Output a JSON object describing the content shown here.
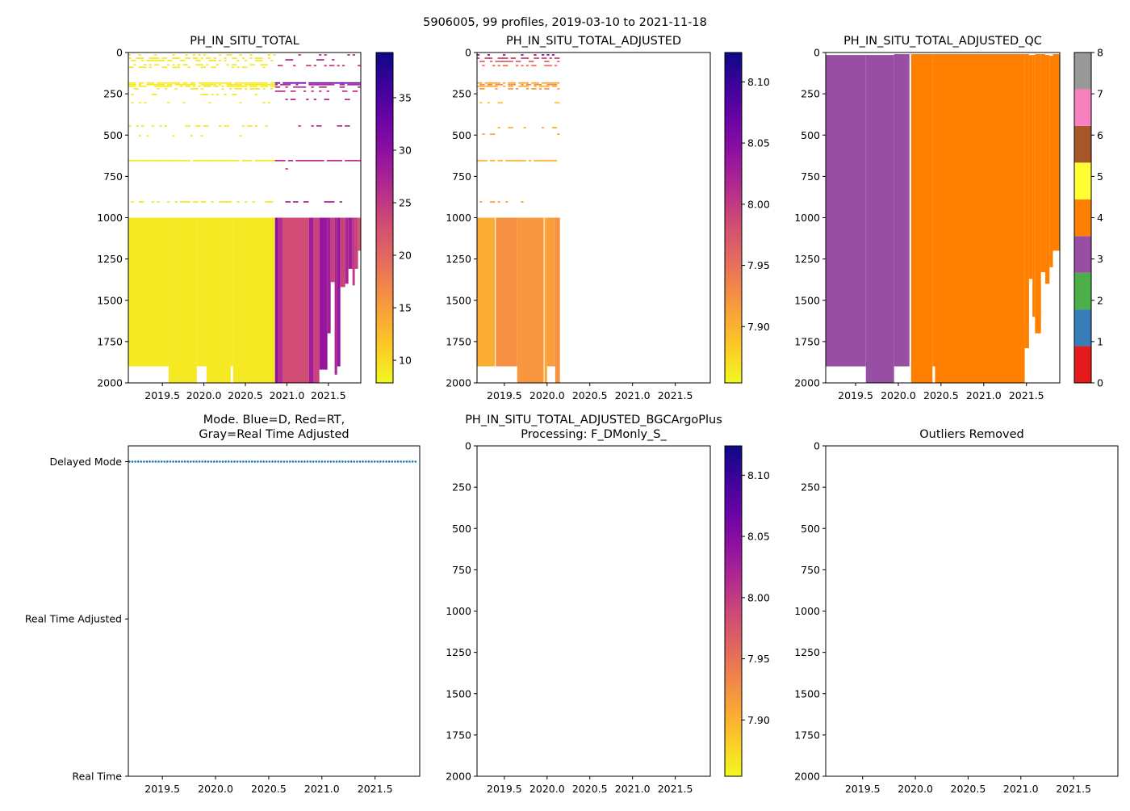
{
  "figure_title": "5906005, 99 profiles, 2019-03-10 to 2021-11-18",
  "chart_data": [
    {
      "type": "heatmap",
      "title": [
        "PH_IN_SITU_TOTAL"
      ],
      "xlim": [
        2019.09,
        2021.89
      ],
      "ylim": [
        2000,
        0
      ],
      "xticks": [
        "2019.5",
        "2020.0",
        "2020.5",
        "2021.0",
        "2021.5"
      ],
      "yticks": [
        "0",
        "250",
        "500",
        "750",
        "1000",
        "1250",
        "1500",
        "1750",
        "2000"
      ],
      "colormap": "plasma_r",
      "clim": [
        7.85,
        39.3
      ],
      "colorbar_ticks": [
        "10",
        "15",
        "20",
        "25",
        "30",
        "35"
      ],
      "segments": [
        [
          2019.09,
          2019.575,
          1000,
          1900,
          9
        ],
        [
          2019.575,
          2019.915,
          1000,
          2000,
          9
        ],
        [
          2019.915,
          2020.032,
          1000,
          1900,
          9
        ],
        [
          2020.032,
          2020.323,
          1000,
          2000,
          9
        ],
        [
          2020.323,
          2020.352,
          1000,
          1900,
          9
        ],
        [
          2020.352,
          2020.857,
          1000,
          2000,
          9
        ],
        [
          2020.857,
          2020.896,
          1000,
          2000,
          30
        ],
        [
          2020.896,
          2020.954,
          1000,
          2000,
          26
        ],
        [
          2020.954,
          2021.265,
          1000,
          2000,
          23
        ],
        [
          2021.265,
          2021.323,
          1000,
          2000,
          28
        ],
        [
          2021.323,
          2021.391,
          1000,
          2000,
          24
        ],
        [
          2021.391,
          2021.488,
          1000,
          1920,
          29
        ],
        [
          2021.488,
          2021.527,
          1000,
          1700,
          28
        ],
        [
          2021.527,
          2021.575,
          1000,
          1390,
          24
        ],
        [
          2021.575,
          2021.605,
          1000,
          1950,
          27
        ],
        [
          2021.605,
          2021.644,
          1000,
          1900,
          29
        ],
        [
          2021.644,
          2021.702,
          1000,
          1420,
          24
        ],
        [
          2021.702,
          2021.741,
          1000,
          1400,
          27
        ],
        [
          2021.741,
          2021.79,
          1000,
          1310,
          28
        ],
        [
          2021.79,
          2021.818,
          1000,
          1410,
          25
        ],
        [
          2021.818,
          2021.857,
          1000,
          1310,
          24
        ],
        [
          2021.857,
          2021.886,
          1000,
          1200,
          22
        ]
      ],
      "sparse_rows": [
        [
          10,
          2019.09,
          2020.857,
          9,
          0.3
        ],
        [
          30,
          2019.09,
          2020.857,
          9,
          0.4
        ],
        [
          45,
          2019.09,
          2020.857,
          9,
          0.5
        ],
        [
          70,
          2019.09,
          2020.857,
          9,
          0.5
        ],
        [
          85,
          2019.09,
          2020.857,
          9,
          0.4
        ],
        [
          10,
          2020.857,
          2021.886,
          26,
          0.15
        ],
        [
          40,
          2020.857,
          2021.886,
          27,
          0.2
        ],
        [
          75,
          2020.857,
          2021.886,
          25,
          0.25
        ],
        [
          180,
          2019.09,
          2020.857,
          9,
          0.9
        ],
        [
          190,
          2019.09,
          2020.857,
          9,
          0.8
        ],
        [
          200,
          2019.09,
          2020.857,
          9,
          0.7
        ],
        [
          215,
          2019.09,
          2020.857,
          9,
          0.4
        ],
        [
          180,
          2020.857,
          2021.886,
          33,
          0.95
        ],
        [
          190,
          2020.857,
          2021.886,
          27,
          0.6
        ],
        [
          205,
          2020.857,
          2021.886,
          26,
          0.5
        ],
        [
          230,
          2020.857,
          2021.886,
          25,
          0.3
        ],
        [
          250,
          2019.09,
          2020.857,
          9,
          0.2
        ],
        [
          280,
          2020.857,
          2021.886,
          27,
          0.3
        ],
        [
          300,
          2019.09,
          2020.857,
          9,
          0.15
        ],
        [
          440,
          2019.09,
          2020.857,
          9,
          0.35
        ],
        [
          440,
          2020.857,
          2021.886,
          26,
          0.3
        ],
        [
          500,
          2019.09,
          2020.857,
          9,
          0.15
        ],
        [
          650,
          2019.09,
          2020.857,
          9,
          0.97
        ],
        [
          650,
          2020.857,
          2021.886,
          26,
          0.9
        ],
        [
          700,
          2020.857,
          2021.886,
          25,
          0.05
        ],
        [
          900,
          2019.09,
          2020.857,
          9,
          0.4
        ],
        [
          900,
          2020.857,
          2021.886,
          27,
          0.4
        ]
      ]
    },
    {
      "type": "heatmap",
      "title": [
        "PH_IN_SITU_TOTAL_ADJUSTED"
      ],
      "xlim": [
        2019.18,
        2021.91
      ],
      "ylim": [
        2000,
        0
      ],
      "xticks": [
        "2019.5",
        "2020.0",
        "2020.5",
        "2021.0",
        "2021.5"
      ],
      "yticks": [
        "0",
        "250",
        "500",
        "750",
        "1000",
        "1250",
        "1500",
        "1750",
        "2000"
      ],
      "colormap": "plasma_r",
      "clim": [
        7.854,
        8.124
      ],
      "colorbar_ticks": [
        "7.90",
        "7.95",
        "8.00",
        "8.05",
        "8.10"
      ],
      "segments": [
        [
          2019.18,
          2019.39,
          1000,
          1900,
          7.905
        ],
        [
          2019.39,
          2019.4,
          1000,
          1900,
          null
        ],
        [
          2019.4,
          2019.65,
          1000,
          1900,
          7.925
        ],
        [
          2019.65,
          2019.96,
          1000,
          2000,
          7.92
        ],
        [
          2019.96,
          2019.97,
          1000,
          2000,
          null
        ],
        [
          2019.97,
          2020.0,
          1000,
          2000,
          7.91
        ],
        [
          2020.0,
          2020.095,
          1000,
          1900,
          7.915
        ],
        [
          2020.095,
          2020.15,
          1000,
          2000,
          7.925
        ]
      ],
      "sparse_rows": [
        [
          10,
          2019.18,
          2020.15,
          8.04,
          0.3
        ],
        [
          30,
          2019.18,
          2020.15,
          7.99,
          0.4
        ],
        [
          50,
          2019.18,
          2020.15,
          7.96,
          0.5
        ],
        [
          75,
          2019.18,
          2020.15,
          7.95,
          0.5
        ],
        [
          180,
          2019.18,
          2020.15,
          7.91,
          0.8
        ],
        [
          190,
          2019.18,
          2020.15,
          7.93,
          0.7
        ],
        [
          200,
          2019.18,
          2020.15,
          7.9,
          0.6
        ],
        [
          215,
          2019.18,
          2020.15,
          7.92,
          0.3
        ],
        [
          300,
          2019.18,
          2020.15,
          7.89,
          0.15
        ],
        [
          450,
          2019.18,
          2020.15,
          7.9,
          0.3
        ],
        [
          490,
          2019.18,
          2020.15,
          7.91,
          0.2
        ],
        [
          650,
          2019.18,
          2020.15,
          7.9,
          0.9
        ],
        [
          900,
          2019.18,
          2020.15,
          7.91,
          0.35
        ]
      ]
    },
    {
      "type": "heatmap",
      "title": [
        "PH_IN_SITU_TOTAL_ADJUSTED_QC"
      ],
      "xlim": [
        2019.15,
        2021.89
      ],
      "ylim": [
        2000,
        0
      ],
      "xticks": [
        "2019.5",
        "2020.0",
        "2020.5",
        "2021.0",
        "2021.5"
      ],
      "yticks": [
        "0",
        "250",
        "500",
        "750",
        "1000",
        "1250",
        "1500",
        "1750",
        "2000"
      ],
      "colormap": "qc",
      "qc_colors": [
        "#e41a1c",
        "#377eb8",
        "#4daf4a",
        "#984ea3",
        "#ff7f00",
        "#ffff33",
        "#a65628",
        "#f781bf",
        "#999999"
      ],
      "clim": [
        0,
        8
      ],
      "colorbar_ticks": [
        "0",
        "1",
        "2",
        "3",
        "4",
        "5",
        "6",
        "7",
        "8"
      ],
      "segments": [
        [
          2019.15,
          2019.62,
          15,
          1900,
          3
        ],
        [
          2019.62,
          2019.95,
          15,
          2000,
          3
        ],
        [
          2019.95,
          2020.13,
          10,
          1900,
          3
        ],
        [
          2020.15,
          2020.4,
          10,
          2000,
          4
        ],
        [
          2020.4,
          2020.43,
          10,
          1900,
          4
        ],
        [
          2020.43,
          2021.48,
          10,
          2000,
          4
        ],
        [
          2021.48,
          2021.53,
          10,
          1790,
          4
        ],
        [
          2021.53,
          2021.57,
          15,
          1370,
          4
        ],
        [
          2021.57,
          2021.6,
          15,
          1600,
          4
        ],
        [
          2021.6,
          2021.67,
          10,
          1700,
          4
        ],
        [
          2021.67,
          2021.72,
          10,
          1330,
          4
        ],
        [
          2021.72,
          2021.77,
          15,
          1400,
          4
        ],
        [
          2021.77,
          2021.81,
          20,
          1300,
          4
        ],
        [
          2021.81,
          2021.89,
          10,
          1200,
          4
        ]
      ],
      "sparse_rows": []
    },
    {
      "type": "scatter",
      "title": [
        "Mode. Blue=D, Red=RT,",
        "Gray=Real Time Adjusted"
      ],
      "xlim": [
        2019.18,
        2021.92
      ],
      "ylim": [
        0,
        2.1
      ],
      "xticks": [
        "2019.5",
        "2020.0",
        "2020.5",
        "2021.0",
        "2021.5"
      ],
      "ycategories": [
        "Real Time",
        "Real Time Adjusted",
        "Delayed Mode"
      ],
      "series": [
        {
          "name": "D",
          "color": "#1f77b4",
          "t_start": 2019.19,
          "t_end": 2021.88,
          "count": 99,
          "level": 2
        }
      ]
    },
    {
      "type": "heatmap",
      "title": [
        "PH_IN_SITU_TOTAL_ADJUSTED_BGCArgoPlus",
        "Processing: F_DMonly_S_"
      ],
      "xlim": [
        2019.18,
        2021.91
      ],
      "ylim": [
        2000,
        0
      ],
      "xticks": [
        "2019.5",
        "2020.0",
        "2020.5",
        "2021.0",
        "2021.5"
      ],
      "yticks": [
        "0",
        "250",
        "500",
        "750",
        "1000",
        "1250",
        "1500",
        "1750",
        "2000"
      ],
      "colormap": "plasma_r",
      "clim": [
        7.854,
        8.124
      ],
      "colorbar_ticks": [
        "7.90",
        "7.95",
        "8.00",
        "8.05",
        "8.10"
      ],
      "segments": [],
      "sparse_rows": []
    },
    {
      "type": "heatmap",
      "title": [
        "Outliers Removed"
      ],
      "xlim": [
        2019.15,
        2021.92
      ],
      "ylim": [
        2000,
        0
      ],
      "xticks": [
        "2019.5",
        "2020.0",
        "2020.5",
        "2021.0",
        "2021.5"
      ],
      "yticks": [
        "0",
        "250",
        "500",
        "750",
        "1000",
        "1250",
        "1500",
        "1750",
        "2000"
      ],
      "segments": [],
      "sparse_rows": []
    }
  ]
}
